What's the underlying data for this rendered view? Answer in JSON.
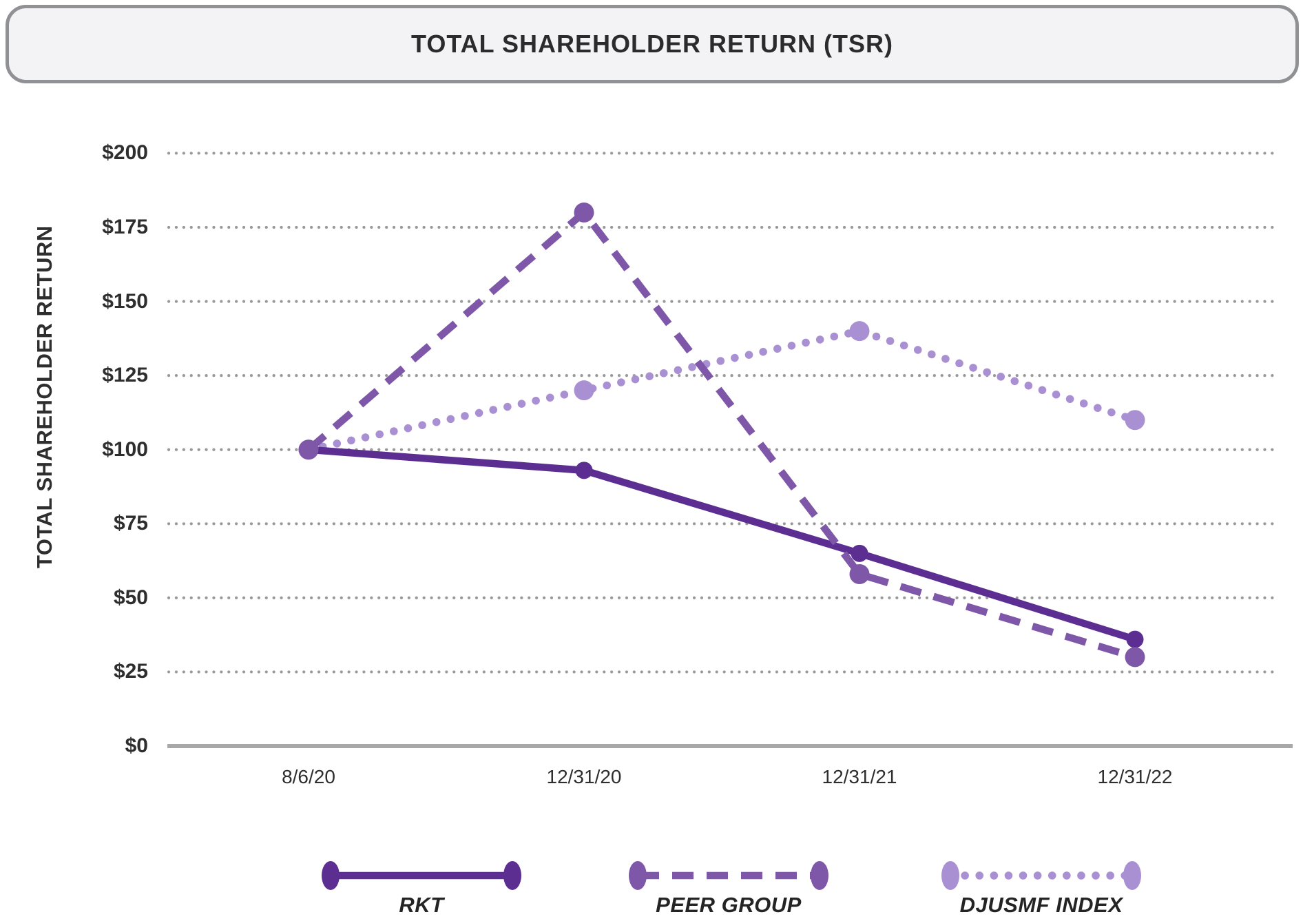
{
  "title": "TOTAL SHAREHOLDER RETURN (TSR)",
  "chart_data": {
    "type": "line",
    "title": "TOTAL SHAREHOLDER RETURN (TSR)",
    "ylabel": "TOTAL SHAREHOLDER RETURN",
    "xlabel": "",
    "categories": [
      "8/6/20",
      "12/31/20",
      "12/31/21",
      "12/31/22"
    ],
    "series": [
      {
        "name": "RKT",
        "style": "solid",
        "color": "#5c2e91",
        "values": [
          100,
          93,
          65,
          36
        ]
      },
      {
        "name": "PEER GROUP",
        "style": "dashed",
        "color": "#7e57a8",
        "values": [
          100,
          180,
          58,
          30
        ]
      },
      {
        "name": "DJUSMF INDEX",
        "style": "dotted",
        "color": "#a990d2",
        "values": [
          100,
          120,
          140,
          110
        ]
      }
    ],
    "ylim": [
      0,
      200
    ],
    "ytick_step": 25,
    "ytick_labels": [
      "$0",
      "$25",
      "$50",
      "$75",
      "$100",
      "$125",
      "$150",
      "$175",
      "$200"
    ],
    "grid": "horizontal-dotted",
    "legend_position": "bottom"
  },
  "colors": {
    "grid_dot": "#999999",
    "axis_line": "#a8a8a8",
    "text": "#2e2e2e",
    "title_box_bg": "#f3f3f5",
    "title_box_border": "#8f9195"
  }
}
